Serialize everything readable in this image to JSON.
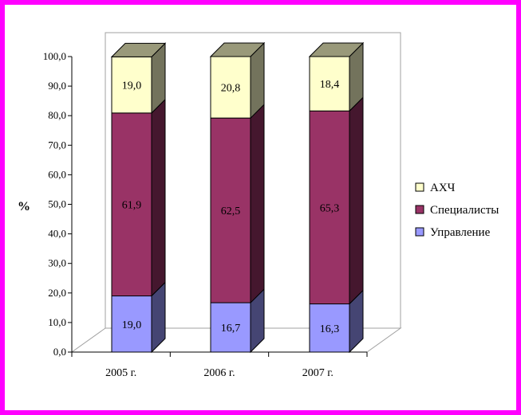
{
  "chart_data": {
    "type": "bar",
    "stacked": true,
    "three_d": true,
    "categories": [
      "2005 г.",
      "2006 г.",
      "2007 г."
    ],
    "series": [
      {
        "name": "Управление",
        "values": [
          19.0,
          16.7,
          16.3
        ],
        "labels": [
          "19,0",
          "16,7",
          "16,3"
        ],
        "color": "#9999ff"
      },
      {
        "name": "Специалисты",
        "values": [
          61.9,
          62.5,
          65.3
        ],
        "labels": [
          "61,9",
          "62,5",
          "65,3"
        ],
        "color": "#993366"
      },
      {
        "name": "АХЧ",
        "values": [
          19.0,
          20.8,
          18.4
        ],
        "labels": [
          "19,0",
          "20,8",
          "18,4"
        ],
        "color": "#ffffcc"
      }
    ],
    "ylabel": "%",
    "ylim": [
      0,
      100
    ],
    "yticks": [
      "0,0",
      "10,0",
      "20,0",
      "30,0",
      "40,0",
      "50,0",
      "60,0",
      "70,0",
      "80,0",
      "90,0",
      "100,0"
    ],
    "legend_position": "right",
    "grid": false
  },
  "frame_color": "#ff00ff"
}
